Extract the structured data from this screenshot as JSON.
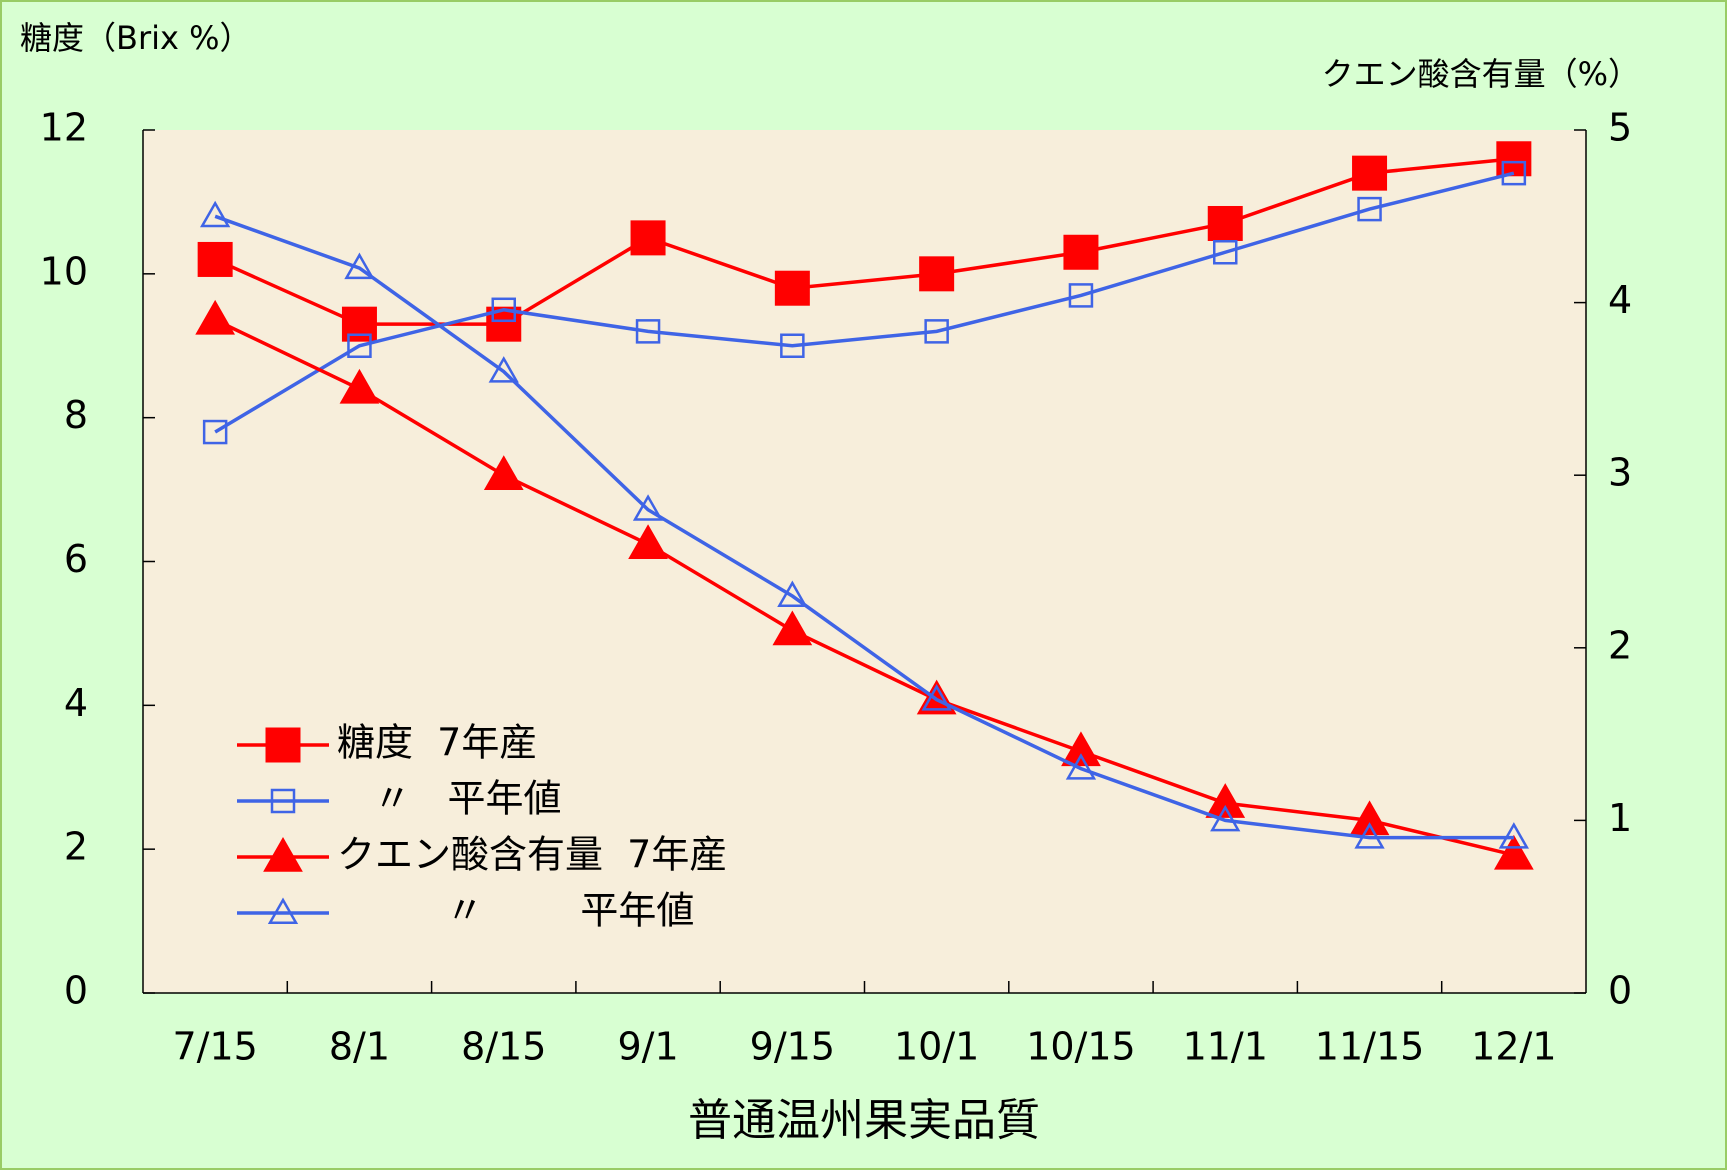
{
  "chart_data": {
    "type": "line",
    "title": "普通温州果実品質",
    "y_label": "糖度（Brix %）",
    "y2_label": "クエン酸含有量（%）",
    "categories": [
      "7/15",
      "8/1",
      "8/15",
      "9/1",
      "9/15",
      "10/1",
      "10/15",
      "11/1",
      "11/15",
      "12/1"
    ],
    "ylim": [
      0,
      12
    ],
    "yticks": [
      0,
      2,
      4,
      6,
      8,
      10,
      12
    ],
    "y2lim": [
      0,
      5
    ],
    "y2ticks": [
      0,
      1,
      2,
      3,
      4,
      5
    ],
    "series": [
      {
        "name": "糖度  7年産",
        "color": "#ff0000",
        "marker": "square",
        "filled": true,
        "axis": "y",
        "values": [
          10.2,
          9.3,
          9.3,
          10.5,
          9.8,
          10.0,
          10.3,
          10.7,
          11.4,
          11.6
        ]
      },
      {
        "name": "   〃   平年値",
        "color": "#3f64e6",
        "marker": "square",
        "filled": false,
        "axis": "y",
        "values": [
          7.8,
          9.0,
          9.5,
          9.2,
          9.0,
          9.2,
          9.7,
          10.3,
          10.9,
          11.4
        ]
      },
      {
        "name": "クエン酸含有量  7年産",
        "color": "#ff0000",
        "marker": "triangle",
        "filled": true,
        "axis": "y2",
        "values": [
          3.9,
          3.5,
          3.0,
          2.6,
          2.1,
          1.7,
          1.4,
          1.1,
          1.0,
          0.8
        ]
      },
      {
        "name": "         〃        平年値",
        "color": "#3f64e6",
        "marker": "triangle",
        "filled": false,
        "axis": "y2",
        "values": [
          4.5,
          4.2,
          3.6,
          2.8,
          2.3,
          1.7,
          1.3,
          1.0,
          0.9,
          0.9
        ]
      }
    ]
  }
}
